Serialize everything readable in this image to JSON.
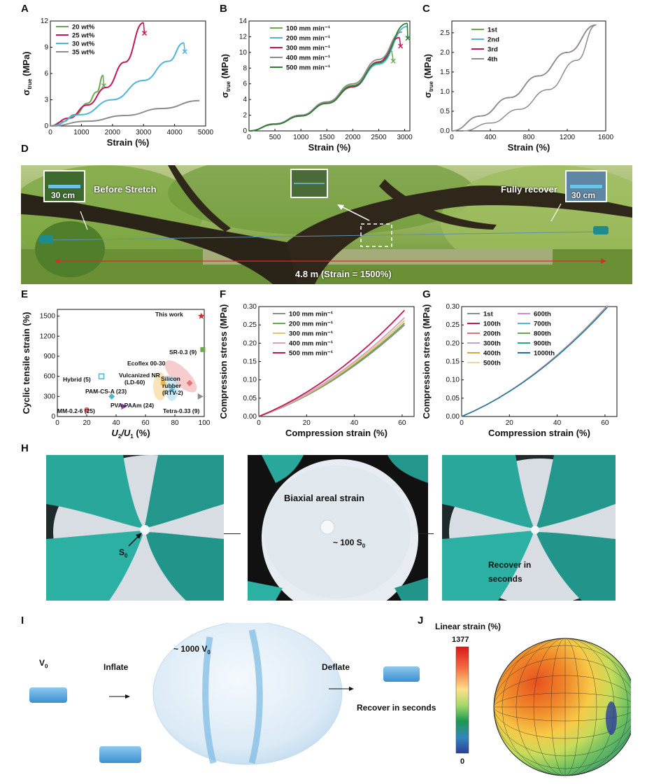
{
  "panels": {
    "A": "A",
    "B": "B",
    "C": "C",
    "D": "D",
    "E": "E",
    "F": "F",
    "G": "G",
    "H": "H",
    "I": "I",
    "J": "J"
  },
  "chart_data": [
    {
      "id": "A",
      "type": "line",
      "xlabel": "Strain (%)",
      "ylabel": "σ_true (MPa)",
      "xlim": [
        0,
        5000
      ],
      "ylim": [
        0,
        12
      ],
      "xticks": [
        0,
        1000,
        2000,
        3000,
        4000,
        5000
      ],
      "yticks": [
        0,
        3,
        6,
        9,
        12
      ],
      "legend": "top-left",
      "series": [
        {
          "name": "20 wt%",
          "color": "#6aa84f",
          "points": [
            [
              0,
              0
            ],
            [
              400,
              0.5
            ],
            [
              800,
              1.3
            ],
            [
              1200,
              2.6
            ],
            [
              1500,
              3.9
            ],
            [
              1700,
              5.8
            ]
          ],
          "break": [
            1720,
            4.6
          ]
        },
        {
          "name": "25 wt%",
          "color": "#c2185b",
          "points": [
            [
              0,
              0
            ],
            [
              600,
              0.9
            ],
            [
              1200,
              2.4
            ],
            [
              1800,
              4.4
            ],
            [
              2400,
              7.3
            ],
            [
              3000,
              11.8
            ]
          ],
          "break": [
            3030,
            10.6
          ]
        },
        {
          "name": "30 wt%",
          "color": "#4db6d8",
          "points": [
            [
              0,
              0
            ],
            [
              1000,
              1.3
            ],
            [
              2000,
              3.0
            ],
            [
              3000,
              5.2
            ],
            [
              3800,
              7.4
            ],
            [
              4300,
              9.5
            ]
          ],
          "break": [
            4330,
            8.5
          ]
        },
        {
          "name": "35 wt%",
          "color": "#8c8c8c",
          "points": [
            [
              0,
              0
            ],
            [
              1200,
              0.55
            ],
            [
              2400,
              1.2
            ],
            [
              3600,
              2.0
            ],
            [
              4800,
              2.9
            ]
          ]
        }
      ]
    },
    {
      "id": "B",
      "type": "line",
      "xlabel": "Strain (%)",
      "ylabel": "σ_true (MPa)",
      "xlim": [
        0,
        3100
      ],
      "ylim": [
        0,
        14
      ],
      "xticks": [
        0,
        500,
        1000,
        1500,
        2000,
        2500,
        3000
      ],
      "yticks": [
        0,
        2,
        4,
        6,
        8,
        10,
        12,
        14
      ],
      "legend": "top-left",
      "series": [
        {
          "name": "100 mm min⁻¹",
          "color": "#6aa84f",
          "points": [
            [
              0,
              0
            ],
            [
              500,
              0.9
            ],
            [
              1000,
              2.0
            ],
            [
              1500,
              3.6
            ],
            [
              2000,
              5.8
            ],
            [
              2500,
              8.6
            ],
            [
              2750,
              10.2
            ]
          ],
          "break": [
            2780,
            8.9
          ]
        },
        {
          "name": "200 mm min⁻¹",
          "color": "#4db6d8",
          "points": [
            [
              0,
              0
            ],
            [
              500,
              0.85
            ],
            [
              1000,
              1.9
            ],
            [
              1500,
              3.5
            ],
            [
              2000,
              5.6
            ],
            [
              2500,
              8.5
            ],
            [
              3050,
              13.3
            ]
          ],
          "break": [
            3060,
            11.8
          ]
        },
        {
          "name": "300 mm min⁻¹",
          "color": "#c2185b",
          "points": [
            [
              0,
              0
            ],
            [
              500,
              0.85
            ],
            [
              1000,
              1.9
            ],
            [
              1500,
              3.5
            ],
            [
              2000,
              5.6
            ],
            [
              2500,
              8.8
            ],
            [
              2900,
              11.9
            ]
          ],
          "break": [
            2920,
            10.8
          ]
        },
        {
          "name": "400 mm min⁻¹",
          "color": "#8c8c8c",
          "points": [
            [
              0,
              0
            ],
            [
              500,
              0.9
            ],
            [
              1000,
              2.0
            ],
            [
              1500,
              3.7
            ],
            [
              2000,
              6.0
            ],
            [
              2500,
              9.1
            ],
            [
              2950,
              12.6
            ]
          ]
        },
        {
          "name": "500 mm min⁻¹",
          "color": "#2e7d32",
          "points": [
            [
              0,
              0
            ],
            [
              500,
              0.85
            ],
            [
              1000,
              1.9
            ],
            [
              1500,
              3.5
            ],
            [
              2000,
              5.7
            ],
            [
              2500,
              8.7
            ],
            [
              3050,
              13.7
            ]
          ],
          "break": [
            3060,
            11.8
          ]
        }
      ]
    },
    {
      "id": "C",
      "type": "line",
      "xlabel": "Strain (%)",
      "ylabel": "σ_true (MPa)",
      "xlim": [
        0,
        1600
      ],
      "ylim": [
        0,
        2.8
      ],
      "xticks": [
        0,
        400,
        800,
        1200,
        1600
      ],
      "yticks": [
        0,
        0.5,
        1.0,
        1.5,
        2.0,
        2.5
      ],
      "legend": "top-left",
      "series": [
        {
          "name": "1st",
          "color": "#6aa84f",
          "points": [
            [
              0,
              0
            ],
            [
              300,
              0.38
            ],
            [
              600,
              0.85
            ],
            [
              900,
              1.4
            ],
            [
              1200,
              2.0
            ],
            [
              1500,
              2.7
            ]
          ]
        },
        {
          "name": "2nd",
          "color": "#4db6d8",
          "points": [
            [
              0,
              0
            ],
            [
              300,
              0.38
            ],
            [
              600,
              0.85
            ],
            [
              900,
              1.4
            ],
            [
              1200,
              2.0
            ],
            [
              1500,
              2.7
            ]
          ]
        },
        {
          "name": "3rd",
          "color": "#c2185b",
          "points": [
            [
              0,
              0
            ],
            [
              300,
              0.38
            ],
            [
              600,
              0.85
            ],
            [
              900,
              1.4
            ],
            [
              1200,
              2.0
            ],
            [
              1500,
              2.7
            ]
          ]
        },
        {
          "name": "4th",
          "color": "#8c8c8c",
          "points": [
            [
              0,
              0
            ],
            [
              300,
              0.38
            ],
            [
              600,
              0.85
            ],
            [
              900,
              1.4
            ],
            [
              1200,
              2.0
            ],
            [
              1500,
              2.7
            ]
          ]
        }
      ],
      "unloading": [
        [
          1500,
          2.7
        ],
        [
          1300,
          1.8
        ],
        [
          1000,
          1.05
        ],
        [
          700,
          0.55
        ],
        [
          400,
          0.2
        ],
        [
          120,
          0
        ]
      ]
    },
    {
      "id": "E",
      "type": "scatter",
      "xlabel": "U2/U1 (%)",
      "ylabel": "Cyclic tensile strain (%)",
      "xlim": [
        0,
        100
      ],
      "ylim": [
        0,
        1600
      ],
      "xticks": [
        0,
        20,
        40,
        60,
        80,
        100
      ],
      "yticks": [
        0,
        300,
        600,
        900,
        1200,
        1500
      ],
      "points": [
        {
          "label": "This work",
          "x": 98,
          "y": 1500,
          "color": "#d62728",
          "marker": "star"
        },
        {
          "label": "SR-0.3 (9)",
          "x": 99,
          "y": 1000,
          "color": "#6aa84f",
          "marker": "square"
        },
        {
          "label": "Ecoflex 00-30",
          "x": 90,
          "y": 500,
          "color": "#e57373",
          "marker": "diamond"
        },
        {
          "label": "Hybrid (5)",
          "x": 30,
          "y": 600,
          "color": "#4db6d8",
          "marker": "square-open"
        },
        {
          "label": "Vulcanized NR (LD-60)",
          "x": 72,
          "y": 500,
          "color": "#e6b84a",
          "marker": "circle"
        },
        {
          "label": "Silicon rubber (RTV-2)",
          "x": 78,
          "y": 400,
          "color": "#4db6d8",
          "marker": "star"
        },
        {
          "label": "PAM-CS-A (23)",
          "x": 37,
          "y": 300,
          "color": "#4db6d8",
          "marker": "diamond"
        },
        {
          "label": "PVA-PAAm (24)",
          "x": 45,
          "y": 150,
          "color": "#8e44ad",
          "marker": "triangle"
        },
        {
          "label": "MM-0.2-6 (25)",
          "x": 20,
          "y": 100,
          "color": "#e57373",
          "marker": "circle"
        },
        {
          "label": "Tetra-0.33 (9)",
          "x": 97,
          "y": 300,
          "color": "#8c8c8c",
          "marker": "triangle"
        }
      ],
      "text_labels": {
        "this_work": "This work",
        "sr": "SR-0.3 (9)",
        "ecoflex": "Ecoflex 00-30",
        "hybrid": "Hybrid (5)",
        "vulcanized_1": "Vulcanized NR",
        "vulcanized_2": "(LD-60)",
        "silicon_1": "Silicon",
        "silicon_2": "rubber",
        "silicon_3": "(RTV-2)",
        "pam": "PAM-CS-A (23)",
        "pva": "PVA-PAAm (24)",
        "mm": "MM-0.2-6 (25)",
        "tetra": "Tetra-0.33 (9)"
      }
    },
    {
      "id": "F",
      "type": "line",
      "xlabel": "Compression strain (%)",
      "ylabel": "Compression stress (MPa)",
      "xlim": [
        0,
        65
      ],
      "ylim": [
        0,
        0.3
      ],
      "xticks": [
        0,
        20,
        40,
        60
      ],
      "yticks": [
        0,
        0.05,
        0.1,
        0.15,
        0.2,
        0.25,
        0.3
      ],
      "legend": "top-left",
      "series": [
        {
          "name": "100 mm min⁻¹",
          "color": "#8c8c8c",
          "end": 0.25
        },
        {
          "name": "200 mm min⁻¹",
          "color": "#6aa84f",
          "end": 0.255
        },
        {
          "name": "300 mm min⁻¹",
          "color": "#e6c46a",
          "end": 0.262
        },
        {
          "name": "400 mm min⁻¹",
          "color": "#d8a0c8",
          "end": 0.27
        },
        {
          "name": "500 mm min⁻¹",
          "color": "#c2185b",
          "end": 0.29
        }
      ]
    },
    {
      "id": "G",
      "type": "line",
      "xlabel": "Compression strain (%)",
      "ylabel": "Compression stress (MPa)",
      "xlim": [
        0,
        65
      ],
      "ylim": [
        0,
        0.3
      ],
      "xticks": [
        0,
        20,
        40,
        60
      ],
      "yticks": [
        0,
        0.05,
        0.1,
        0.15,
        0.2,
        0.25,
        0.3
      ],
      "legend": "top-left",
      "series": [
        {
          "name": "1st",
          "color": "#8c8c8c"
        },
        {
          "name": "100th",
          "color": "#c2185b"
        },
        {
          "name": "200th",
          "color": "#e57373"
        },
        {
          "name": "300th",
          "color": "#c8a0d0"
        },
        {
          "name": "400th",
          "color": "#d9a441"
        },
        {
          "name": "500th",
          "color": "#e8d8a8"
        },
        {
          "name": "600th",
          "color": "#d08bd8"
        },
        {
          "name": "700th",
          "color": "#4db6d8"
        },
        {
          "name": "800th",
          "color": "#6aa84f"
        },
        {
          "name": "900th",
          "color": "#2ea58a"
        },
        {
          "name": "1000th",
          "color": "#1f6fa8"
        }
      ]
    },
    {
      "id": "J",
      "type": "heatmap",
      "colorbar_title": "Linear strain (%)",
      "colorbar_range": [
        0,
        1377
      ],
      "colorbar_max_label": "1377",
      "colorbar_min_label": "0"
    }
  ],
  "photo_D": {
    "before_stretch": "Before Stretch",
    "fully_recover": "Fully recover",
    "scale_left": "30 cm",
    "scale_right": "30 cm",
    "distance": "4.8 m (Strain = 1500%)"
  },
  "photo_H": {
    "s0": "S",
    "s0_sub": "0",
    "biaxial": "Biaxial areal strain",
    "hundred_s0": "~ 100 S",
    "hundred_s0_sub": "0",
    "recover_1": "Recover in",
    "recover_2": "seconds"
  },
  "photo_I": {
    "v0": "V",
    "v0_sub": "0",
    "inflate": "Inflate",
    "thousand_v0": "~ 1000 V",
    "thousand_v0_sub": "0",
    "deflate": "Deflate",
    "recover": "Recover in seconds"
  }
}
